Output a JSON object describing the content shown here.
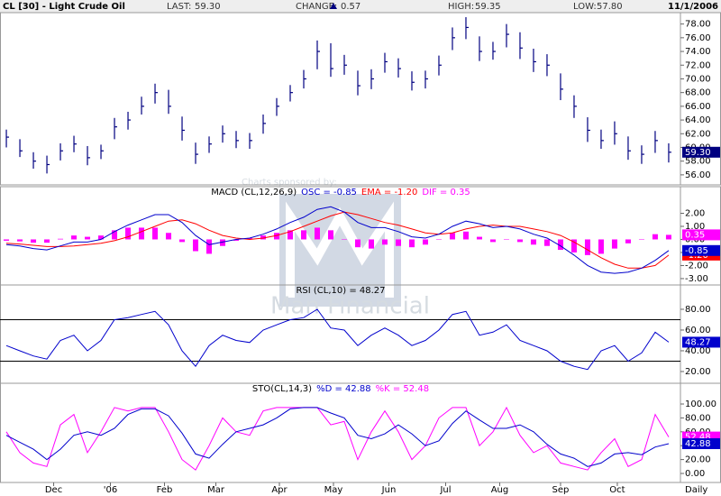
{
  "header": {
    "title": "CL [30] - Light Crude Oil",
    "items": [
      {
        "label": "LAST:",
        "value": "59.30"
      },
      {
        "label": "CHANGE:",
        "value": "0.57"
      },
      {
        "label": "HIGH:",
        "value": "59.35"
      },
      {
        "label": "LOW:",
        "value": "57.80"
      }
    ],
    "date": "11/1/2006"
  },
  "sponsor": {
    "text": "Charts sponsored by:",
    "name": "Man Financial"
  },
  "chart_data": [
    {
      "type": "ohlc",
      "color": "#000080",
      "last_label": "59.30",
      "xlim": [
        -0.47,
        49.87
      ],
      "ylim": [
        54.8,
        79.4
      ],
      "yticks": [
        {
          "value": 56,
          "label": "56.00"
        },
        {
          "value": 58,
          "label": "58.00"
        },
        {
          "value": 60,
          "label": "60.00"
        },
        {
          "value": 62,
          "label": "62.00"
        },
        {
          "value": 64,
          "label": "64.00"
        },
        {
          "value": 66,
          "label": "66.00"
        },
        {
          "value": 68,
          "label": "68.00"
        },
        {
          "value": 70,
          "label": "70.00"
        },
        {
          "value": 72,
          "label": "72.00"
        },
        {
          "value": 74,
          "label": "74.00"
        },
        {
          "value": 76,
          "label": "76.00"
        },
        {
          "value": 78,
          "label": "78.00"
        }
      ],
      "high": [
        62.6,
        61.2,
        59.3,
        58.8,
        60.6,
        61.7,
        60.2,
        60.4,
        64.3,
        65.2,
        67.4,
        69.3,
        68.4,
        64.5,
        60.7,
        61.6,
        63.2,
        62.4,
        62.1,
        64.8,
        67.2,
        69.1,
        71.3,
        75.6,
        75.2,
        73.5,
        71.2,
        71.4,
        73.8,
        73.0,
        71.1,
        71.2,
        73.4,
        77.5,
        79.0,
        76.2,
        75.4,
        78.0,
        76.8,
        74.4,
        73.6,
        70.8,
        67.6,
        64.4,
        62.6,
        63.8,
        61.6,
        60.3,
        62.4,
        60.6
      ],
      "low": [
        60.0,
        58.6,
        56.9,
        56.2,
        58.1,
        59.3,
        57.4,
        58.3,
        61.2,
        62.6,
        64.8,
        66.4,
        64.9,
        61.0,
        57.6,
        59.2,
        60.7,
        59.9,
        59.8,
        62.0,
        64.6,
        66.7,
        68.6,
        71.4,
        70.3,
        70.6,
        67.6,
        68.5,
        70.9,
        70.2,
        68.3,
        68.6,
        70.5,
        74.2,
        75.8,
        72.6,
        72.8,
        74.6,
        72.9,
        71.0,
        70.4,
        66.9,
        64.3,
        60.8,
        59.8,
        60.4,
        58.2,
        57.6,
        59.2,
        57.8
      ],
      "close": [
        61.5,
        59.5,
        58,
        57.5,
        59.5,
        60.5,
        58.5,
        59.5,
        63,
        64,
        66,
        68,
        66,
        62.5,
        59,
        60.5,
        62,
        61,
        61,
        63.5,
        66,
        68,
        70,
        74,
        71.5,
        72,
        69,
        70,
        72.5,
        71.5,
        69.5,
        70,
        72,
        76,
        77.5,
        74,
        74,
        76.5,
        74.5,
        72.5,
        72,
        68.5,
        66,
        62.5,
        61,
        62,
        59.5,
        59,
        61,
        59.3
      ]
    },
    {
      "type": "line",
      "title": "MACD (CL,12,26,9)",
      "xlim": [
        -0.47,
        49.87
      ],
      "ylim": [
        -3.35,
        3.9
      ],
      "yticks": [
        {
          "value": 2,
          "label": "2.00"
        },
        {
          "value": 1,
          "label": "1.00"
        },
        {
          "value": 0,
          "label": "0.00"
        },
        {
          "value": -1,
          "label": "-1.00"
        },
        {
          "value": -2,
          "label": "-2.00"
        },
        {
          "value": -3,
          "label": "-3.00"
        }
      ],
      "series": [
        {
          "name": "DIF = 0.35",
          "color": "#ff00ff",
          "style": "bar",
          "last_label": "0.35",
          "values": [
            -0.1,
            -0.15,
            -0.25,
            -0.25,
            0.05,
            0.3,
            0.2,
            0.3,
            0.7,
            0.9,
            0.9,
            0.9,
            0.5,
            -0.2,
            -0.9,
            -1.1,
            -0.5,
            -0.1,
            0.1,
            0.3,
            0.5,
            0.7,
            0.7,
            0.9,
            0.7,
            0.0,
            -0.6,
            -0.7,
            -0.4,
            -0.5,
            -0.6,
            -0.4,
            0.0,
            0.5,
            0.6,
            0.2,
            -0.2,
            0.0,
            -0.2,
            -0.4,
            -0.5,
            -0.8,
            -1.0,
            -1.2,
            -1.1,
            -0.7,
            -0.3,
            0.0,
            0.4,
            0.35
          ]
        },
        {
          "name": "EMA = -1.20",
          "color": "#ff0000",
          "style": "line",
          "last_label": "-1.20",
          "values": [
            -0.3,
            -0.35,
            -0.45,
            -0.55,
            -0.55,
            -0.5,
            -0.4,
            -0.3,
            -0.1,
            0.2,
            0.6,
            1.0,
            1.4,
            1.5,
            1.2,
            0.7,
            0.3,
            0.1,
            0.0,
            0.1,
            0.3,
            0.6,
            1.0,
            1.4,
            1.8,
            2.1,
            1.9,
            1.6,
            1.3,
            1.1,
            0.8,
            0.5,
            0.4,
            0.5,
            0.8,
            1.0,
            1.1,
            1.0,
            1.0,
            0.8,
            0.6,
            0.3,
            -0.2,
            -0.8,
            -1.4,
            -1.9,
            -2.2,
            -2.2,
            -2.0,
            -1.2
          ]
        },
        {
          "name": "OSC = -0.85",
          "color": "#0000cc",
          "style": "line",
          "last_label": "-0.85",
          "values": [
            -0.4,
            -0.5,
            -0.7,
            -0.8,
            -0.5,
            -0.2,
            -0.2,
            0.0,
            0.6,
            1.1,
            1.5,
            1.9,
            1.9,
            1.3,
            0.3,
            -0.4,
            -0.2,
            0.0,
            0.1,
            0.4,
            0.8,
            1.3,
            1.7,
            2.3,
            2.5,
            2.1,
            1.3,
            0.9,
            0.9,
            0.6,
            0.2,
            0.1,
            0.4,
            1.0,
            1.4,
            1.2,
            0.9,
            1.0,
            0.8,
            0.4,
            0.1,
            -0.5,
            -1.2,
            -2.0,
            -2.5,
            -2.6,
            -2.5,
            -2.2,
            -1.6,
            -0.85
          ]
        }
      ]
    },
    {
      "type": "line",
      "title": "RSI (CL,10) = 48.27",
      "xlim": [
        -0.47,
        49.87
      ],
      "ylim": [
        10.4,
        101.7
      ],
      "levels": [
        30,
        70
      ],
      "yticks": [
        {
          "value": 20,
          "label": "20.00"
        },
        {
          "value": 40,
          "label": "40.00"
        },
        {
          "value": 60,
          "label": "60.00"
        },
        {
          "value": 80,
          "label": "80.00"
        }
      ],
      "series": [
        {
          "name": "RSI",
          "color": "#0000cc",
          "style": "line",
          "last_label": "48.27",
          "values": [
            45,
            40,
            35,
            32,
            50,
            55,
            40,
            50,
            70,
            72,
            75,
            78,
            65,
            40,
            25,
            45,
            55,
            50,
            48,
            60,
            65,
            70,
            72,
            80,
            62,
            60,
            45,
            55,
            62,
            55,
            45,
            50,
            60,
            75,
            78,
            55,
            58,
            65,
            50,
            45,
            40,
            30,
            25,
            22,
            40,
            45,
            30,
            38,
            58,
            48.27
          ]
        }
      ]
    },
    {
      "type": "line",
      "title": "STO(CL,14,3)",
      "xlim": [
        -0.47,
        49.87
      ],
      "ylim": [
        -10.4,
        127.3
      ],
      "yticks": [
        {
          "value": 0,
          "label": "0.00"
        },
        {
          "value": 20,
          "label": "20.00"
        },
        {
          "value": 40,
          "label": "40.00"
        },
        {
          "value": 60,
          "label": "60.00"
        },
        {
          "value": 80,
          "label": "80.00"
        },
        {
          "value": 100,
          "label": "100.00"
        }
      ],
      "xticks": [
        {
          "value": 3.5,
          "label": "Dec"
        },
        {
          "value": 7.7,
          "label": "'06"
        },
        {
          "value": 11.7,
          "label": "Feb"
        },
        {
          "value": 15.5,
          "label": "Mar"
        },
        {
          "value": 20.2,
          "label": "Apr"
        },
        {
          "value": 24.2,
          "label": "May"
        },
        {
          "value": 28.3,
          "label": "Jun"
        },
        {
          "value": 32.5,
          "label": "Jul"
        },
        {
          "value": 36.5,
          "label": "Aug"
        },
        {
          "value": 41,
          "label": "Sep"
        },
        {
          "value": 45.2,
          "label": "Oct"
        }
      ],
      "x_label": "Daily",
      "series": [
        {
          "name": "%K = 52.48",
          "color": "#ff00ff",
          "style": "line",
          "last_label": "52.48",
          "values": [
            60,
            30,
            15,
            10,
            70,
            85,
            30,
            60,
            95,
            90,
            95,
            95,
            60,
            20,
            5,
            40,
            80,
            60,
            55,
            90,
            95,
            95,
            95,
            95,
            70,
            75,
            20,
            60,
            90,
            60,
            20,
            40,
            80,
            95,
            95,
            40,
            60,
            95,
            55,
            30,
            40,
            15,
            10,
            5,
            30,
            50,
            10,
            20,
            85,
            52.48
          ]
        },
        {
          "name": "%D = 42.88",
          "color": "#0000cc",
          "style": "line",
          "last_label": "42.88",
          "values": [
            55,
            45,
            35,
            20,
            35,
            55,
            60,
            55,
            65,
            85,
            93,
            93,
            83,
            58,
            28,
            22,
            42,
            60,
            65,
            70,
            80,
            93,
            95,
            95,
            87,
            80,
            55,
            50,
            57,
            70,
            57,
            40,
            47,
            72,
            90,
            77,
            65,
            65,
            70,
            60,
            42,
            28,
            22,
            10,
            15,
            28,
            30,
            27,
            38,
            42.88
          ]
        }
      ]
    }
  ]
}
